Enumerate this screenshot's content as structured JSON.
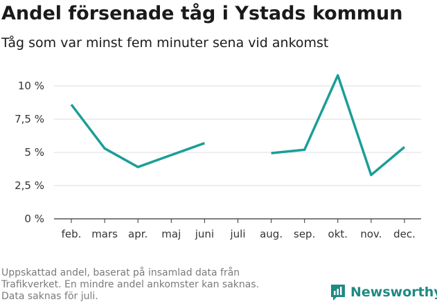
{
  "title": "Andel försenade tåg i Ystads kommun",
  "subtitle": "Tåg som var minst fem minuter sena vid ankomst",
  "footnote": {
    "line1": "Uppskattad andel, baserat på insamlad data från",
    "line2": "Trafikverket. En mindre andel ankomster kan saknas.",
    "line3": "Data saknas för juli."
  },
  "brand": {
    "name": "Newsworthy",
    "icon": "newsworthy-logo-icon"
  },
  "colors": {
    "line": "#1a9e97",
    "grid": "#dddddd",
    "axis": "#333333",
    "brand": "#1f8a83"
  },
  "chart_data": {
    "type": "line",
    "categories": [
      "feb.",
      "mars",
      "apr.",
      "maj",
      "juni",
      "juli",
      "aug.",
      "sep.",
      "okt.",
      "nov.",
      "dec."
    ],
    "series": [
      {
        "values": [
          8.6,
          5.3,
          3.9,
          4.8,
          5.7,
          null,
          4.95,
          5.2,
          10.8,
          3.3,
          5.4
        ]
      }
    ],
    "yticks": [
      0,
      2.5,
      5,
      7.5,
      10
    ],
    "ytick_labels": [
      "0 %",
      "2,5 %",
      "5 %",
      "7,5 %",
      "10 %"
    ],
    "ylim": [
      0,
      11
    ],
    "grid": true
  }
}
